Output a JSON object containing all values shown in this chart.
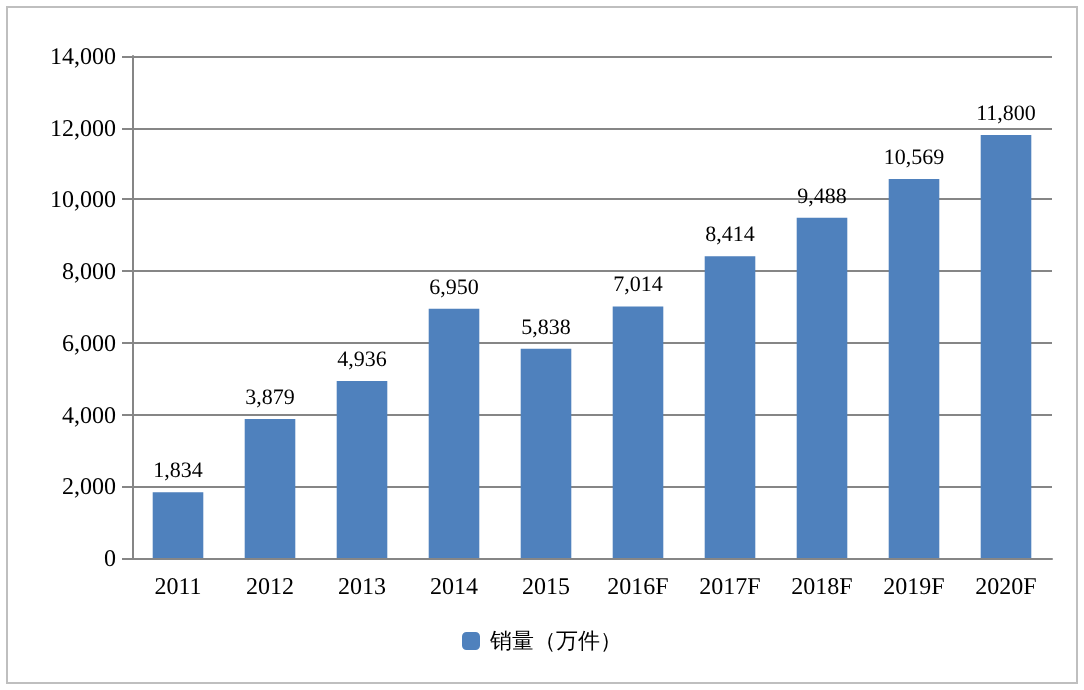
{
  "chart_data": {
    "type": "bar",
    "categories": [
      "2011",
      "2012",
      "2013",
      "2014",
      "2015",
      "2016F",
      "2017F",
      "2018F",
      "2019F",
      "2020F"
    ],
    "series": [
      {
        "name": "销量（万件）",
        "color": "#4f81bd",
        "values": [
          1834,
          3879,
          4936,
          6950,
          5838,
          7014,
          8414,
          9488,
          10569,
          11800
        ],
        "value_labels": [
          "1,834",
          "3,879",
          "4,936",
          "6,950",
          "5,838",
          "7,014",
          "8,414",
          "9,488",
          "10,569",
          "11,800"
        ]
      }
    ],
    "ylim": [
      0,
      14000
    ],
    "yticks": [
      0,
      {
        "value": 2000,
        "label": "2,000"
      },
      {
        "value": 4000,
        "label": "4,000"
      },
      {
        "value": 6000,
        "label": "6,000"
      },
      {
        "value": 8000,
        "label": "8,000"
      },
      {
        "value": 10000,
        "label": "10,000"
      },
      {
        "value": 12000,
        "label": "12,000"
      },
      {
        "value": 14000,
        "label": "14,000"
      }
    ],
    "grid": "y",
    "legend": "bottom"
  }
}
